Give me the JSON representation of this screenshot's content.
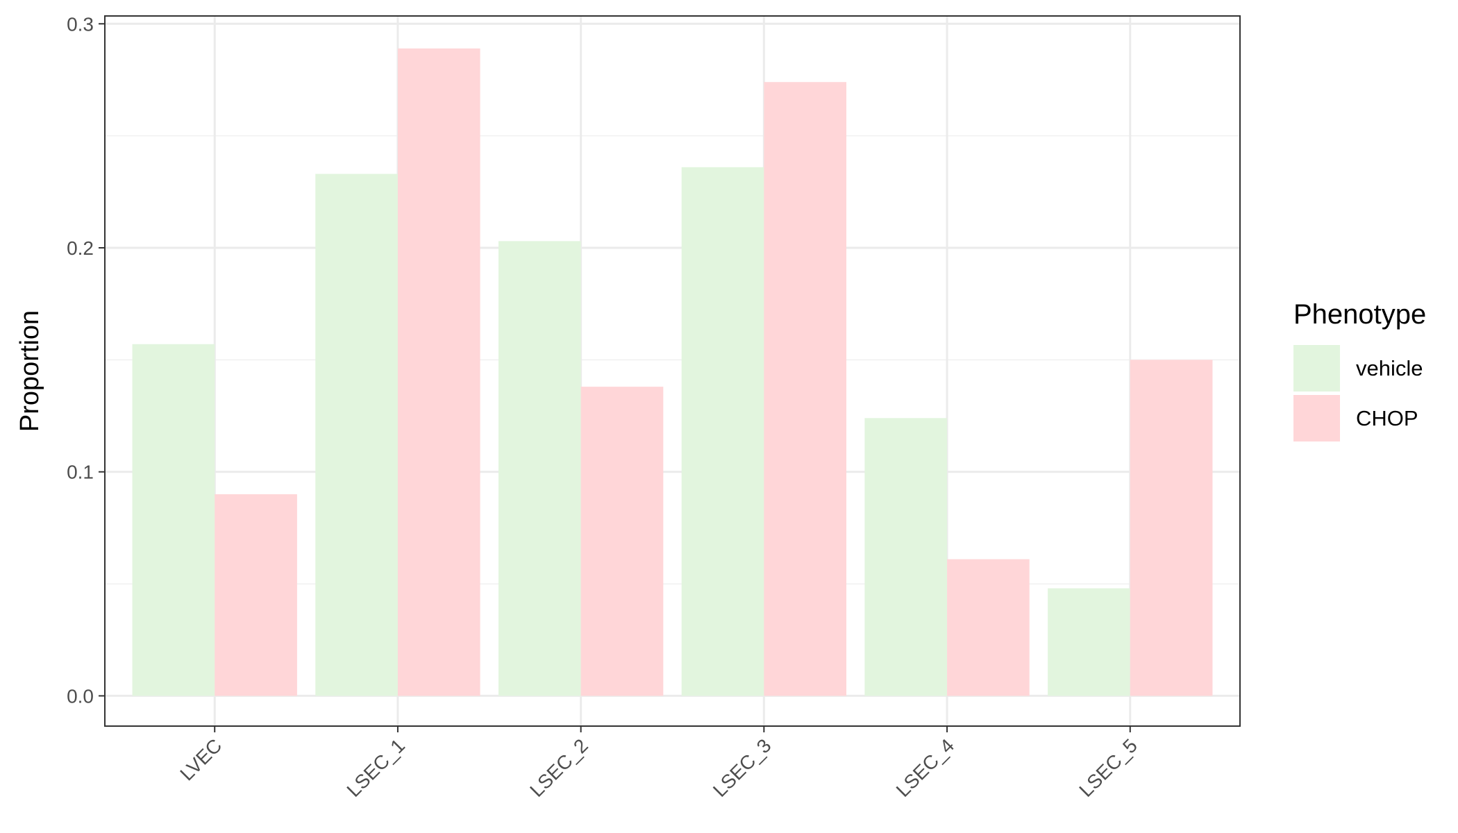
{
  "chart_data": {
    "type": "bar",
    "title": "",
    "xlabel": "",
    "ylabel": "Proportion",
    "categories": [
      "LVEC",
      "LSEC_1",
      "LSEC_2",
      "LSEC_3",
      "LSEC_4",
      "LSEC_5"
    ],
    "series": [
      {
        "name": "vehicle",
        "color": "#e2f5de",
        "values": [
          0.157,
          0.233,
          0.203,
          0.236,
          0.124,
          0.048
        ]
      },
      {
        "name": "CHOP",
        "color": "#ffd6d8",
        "values": [
          0.09,
          0.289,
          0.138,
          0.274,
          0.061,
          0.15
        ]
      }
    ],
    "ylim": [
      -0.0135,
      0.3035
    ],
    "yticks": [
      0.0,
      0.1,
      0.2,
      0.3
    ],
    "ytick_labels": [
      "0.0",
      "0.1",
      "0.2",
      "0.3"
    ],
    "grid": true,
    "legend": {
      "title": "Phenotype",
      "placement": "right"
    }
  }
}
